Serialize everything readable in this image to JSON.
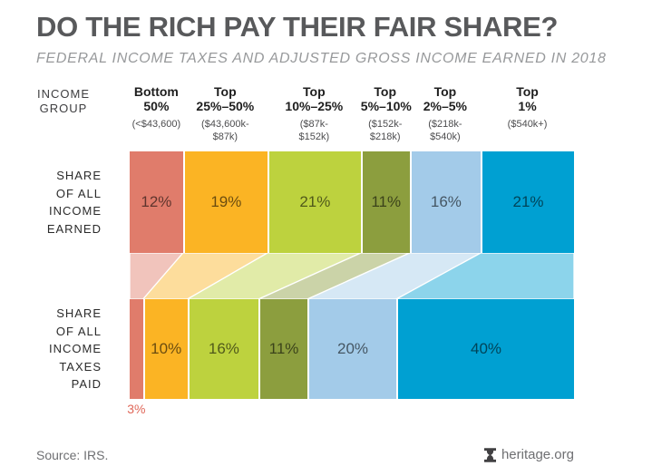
{
  "page": {
    "title": "DO THE RICH PAY THEIR FAIR SHARE?",
    "subtitle": "FEDERAL INCOME TAXES AND ADJUSTED GROSS INCOME EARNED IN 2018"
  },
  "left_labels": {
    "income_group": "INCOME\nGROUP",
    "income_row": "SHARE\nOF ALL\nINCOME\nEARNED",
    "taxes_row": "SHARE\nOF ALL\nINCOME\nTAXES\nPAID"
  },
  "footer": {
    "source": "Source: IRS.",
    "site": "heritage.org",
    "site_icon": "heritage-bell-icon",
    "text_color": "#6e6f72",
    "icon_color": "#414042"
  },
  "chart_data": {
    "type": "bar",
    "subtype": "paired-proportional-stacked-bars-with-flow-connectors",
    "unit": "percent",
    "value_suffix": "%",
    "title": "DO THE RICH PAY THEIR FAIR SHARE?",
    "subtitle": "FEDERAL INCOME TAXES AND ADJUSTED GROSS INCOME EARNED IN 2018",
    "categories": [
      "Bottom 50%",
      "Top 25%–50%",
      "Top 10%–25%",
      "Top 5%–10%",
      "Top 2%–5%",
      "Top 1%"
    ],
    "category_display": [
      "Bottom\n50%",
      "Top\n25%–50%",
      "Top\n10%–25%",
      "Top\n5%–10%",
      "Top\n2%–5%",
      "Top\n1%"
    ],
    "category_ranges": [
      "(<$43,600)",
      "($43,600k-\n$87k)",
      "($87k-\n$152k)",
      "($152k-\n$218k)",
      "($218k-\n$540k)",
      "($540k+)"
    ],
    "colors": [
      "#E07C6B",
      "#FBB424",
      "#BDD23E",
      "#8C9E3E",
      "#A3CBE9",
      "#00A0D2"
    ],
    "connector_opacity": 0.45,
    "external_label_color": "#E0685A",
    "series": [
      {
        "name": "SHARE OF ALL INCOME EARNED",
        "values": [
          12,
          19,
          21,
          11,
          16,
          21
        ]
      },
      {
        "name": "SHARE OF ALL INCOME TAXES PAID",
        "values": [
          3,
          10,
          16,
          11,
          20,
          40
        ]
      }
    ]
  }
}
